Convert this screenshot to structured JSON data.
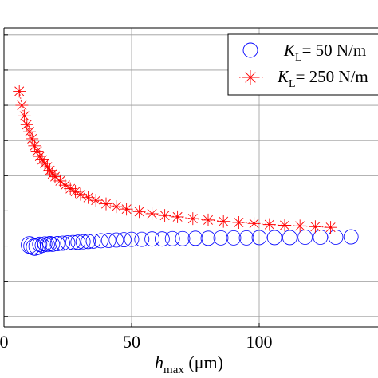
{
  "chart_data": {
    "type": "scatter",
    "title": "",
    "xlabel": {
      "main": "h",
      "sub": "max",
      "unit": " (μm)"
    },
    "ylabel": "",
    "xlim": [
      0,
      140
    ],
    "ylim": [
      -0.3,
      8.2
    ],
    "x_ticks": [
      0,
      50,
      100
    ],
    "x_tick_labels": [
      "0",
      "50",
      "100"
    ],
    "y_gridlines": [
      0,
      1,
      2,
      3,
      4,
      5,
      6,
      7,
      8
    ],
    "grid": true,
    "legend_position": "top-right",
    "series": [
      {
        "name": "K_L = 50 N/m",
        "legend": {
          "k": "K",
          "sub": "L",
          "rest": "= 50  N/m"
        },
        "marker": "circle",
        "color": "#0000ff",
        "x": [
          10,
          11,
          12,
          13,
          14,
          15,
          16,
          17,
          18,
          19,
          21,
          23,
          25,
          27,
          29,
          31,
          33,
          35,
          38,
          41,
          44,
          47,
          50,
          54,
          58,
          62,
          66,
          70,
          75,
          80,
          85,
          90,
          95,
          100,
          106,
          112,
          118,
          124,
          130,
          136
        ],
        "y": [
          2.03,
          2.0,
          1.97,
          1.99,
          2.05,
          2.02,
          2.06,
          2.04,
          2.07,
          2.05,
          2.07,
          2.08,
          2.09,
          2.1,
          2.11,
          2.12,
          2.13,
          2.14,
          2.15,
          2.16,
          2.17,
          2.18,
          2.19,
          2.19,
          2.2,
          2.2,
          2.21,
          2.21,
          2.22,
          2.22,
          2.23,
          2.23,
          2.23,
          2.24,
          2.24,
          2.24,
          2.25,
          2.25,
          2.25,
          2.26
        ]
      },
      {
        "name": "K_L = 250 N/m",
        "legend": {
          "k": "K",
          "sub": "L",
          "rest": "= 250  N/m"
        },
        "marker": "star",
        "color": "#ff0000",
        "x": [
          6,
          7,
          8,
          9,
          10,
          11,
          12,
          13,
          14,
          15,
          16,
          17,
          18,
          19,
          20,
          22,
          24,
          26,
          28,
          30,
          33,
          36,
          40,
          44,
          48,
          53,
          58,
          63,
          68,
          74,
          80,
          86,
          92,
          98,
          104,
          110,
          116,
          122,
          128
        ],
        "y": [
          6.4,
          6.0,
          5.7,
          5.45,
          5.25,
          5.05,
          4.85,
          4.7,
          4.55,
          4.45,
          4.35,
          4.25,
          4.15,
          4.05,
          3.97,
          3.85,
          3.73,
          3.63,
          3.55,
          3.47,
          3.38,
          3.3,
          3.2,
          3.12,
          3.05,
          2.98,
          2.92,
          2.87,
          2.83,
          2.78,
          2.74,
          2.7,
          2.67,
          2.64,
          2.61,
          2.59,
          2.57,
          2.55,
          2.53
        ]
      }
    ]
  }
}
